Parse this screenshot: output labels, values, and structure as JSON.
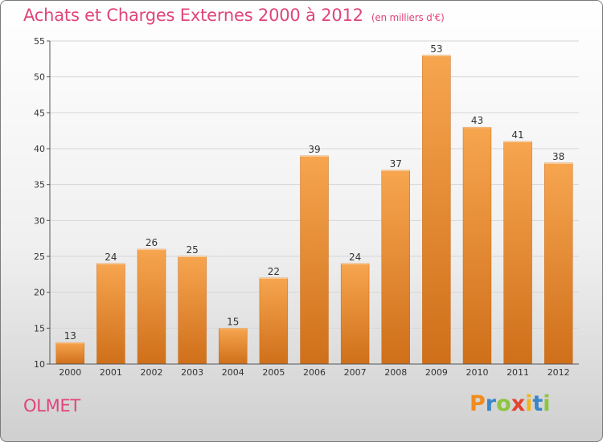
{
  "header": {
    "title": "Achats et Charges Externes 2000 à 2012",
    "unit": "(en milliers d'€)"
  },
  "footer": {
    "town": "OLMET",
    "brand": [
      "P",
      "r",
      "o",
      "x",
      "i",
      "t",
      "i"
    ]
  },
  "chart_data": {
    "type": "bar",
    "title": "Achats et Charges Externes 2000 à 2012",
    "subtitle": "(en milliers d'€)",
    "categories": [
      "2000",
      "2001",
      "2002",
      "2003",
      "2004",
      "2005",
      "2006",
      "2007",
      "2008",
      "2009",
      "2010",
      "2011",
      "2012"
    ],
    "values": [
      13,
      24,
      26,
      25,
      15,
      22,
      39,
      24,
      37,
      53,
      43,
      41,
      38
    ],
    "ylim": [
      10,
      55
    ],
    "yticks": [
      10,
      15,
      20,
      25,
      30,
      35,
      40,
      45,
      50,
      55
    ],
    "grid": true,
    "bar_color_top": "#f7a54f",
    "bar_color_bottom": "#cf6f1a"
  }
}
